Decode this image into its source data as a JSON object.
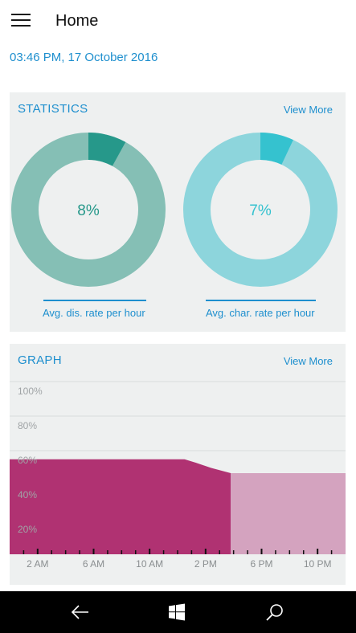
{
  "header": {
    "title": "Home",
    "menu_icon": "hamburger-menu-icon"
  },
  "datetime": "03:46 PM, 17 October 2016",
  "statistics": {
    "title": "STATISTICS",
    "view_more": "View More",
    "discharge": {
      "value_label": "8%",
      "value": 8,
      "caption": "Avg. dis. rate per hour",
      "ring_color": "#85bfb5",
      "accent_color": "#26988a"
    },
    "charge": {
      "value_label": "7%",
      "value": 7,
      "caption": "Avg. char. rate per hour",
      "ring_color": "#8dd5dc",
      "accent_color": "#35c2cf"
    }
  },
  "graph": {
    "title": "GRAPH",
    "view_more": "View More",
    "y_labels": [
      "100%",
      "80%",
      "60%",
      "40%",
      "20%"
    ],
    "x_labels": [
      "2 AM",
      "6 AM",
      "10 AM",
      "2 PM",
      "6 PM",
      "10 PM"
    ],
    "chart_data": {
      "type": "area",
      "ylim": [
        0,
        100
      ],
      "y_ticks": [
        "100%",
        "80%",
        "60%",
        "40%",
        "20%"
      ],
      "x_ticks": [
        "2 AM",
        "6 AM",
        "10 AM",
        "2 PM",
        "6 PM",
        "10 PM"
      ],
      "series": [
        {
          "x": [
            0,
            12.5,
            13.3,
            14.4,
            15.8
          ],
          "values": [
            55,
            55,
            53,
            50,
            47
          ],
          "color": "#b03272"
        },
        {
          "x": [
            15.8,
            24
          ],
          "values": [
            47,
            47
          ],
          "color": "#d4a3bf"
        }
      ]
    }
  },
  "navbar": {
    "back_icon": "back-arrow-icon",
    "home_icon": "windows-logo-icon",
    "search_icon": "search-icon"
  }
}
